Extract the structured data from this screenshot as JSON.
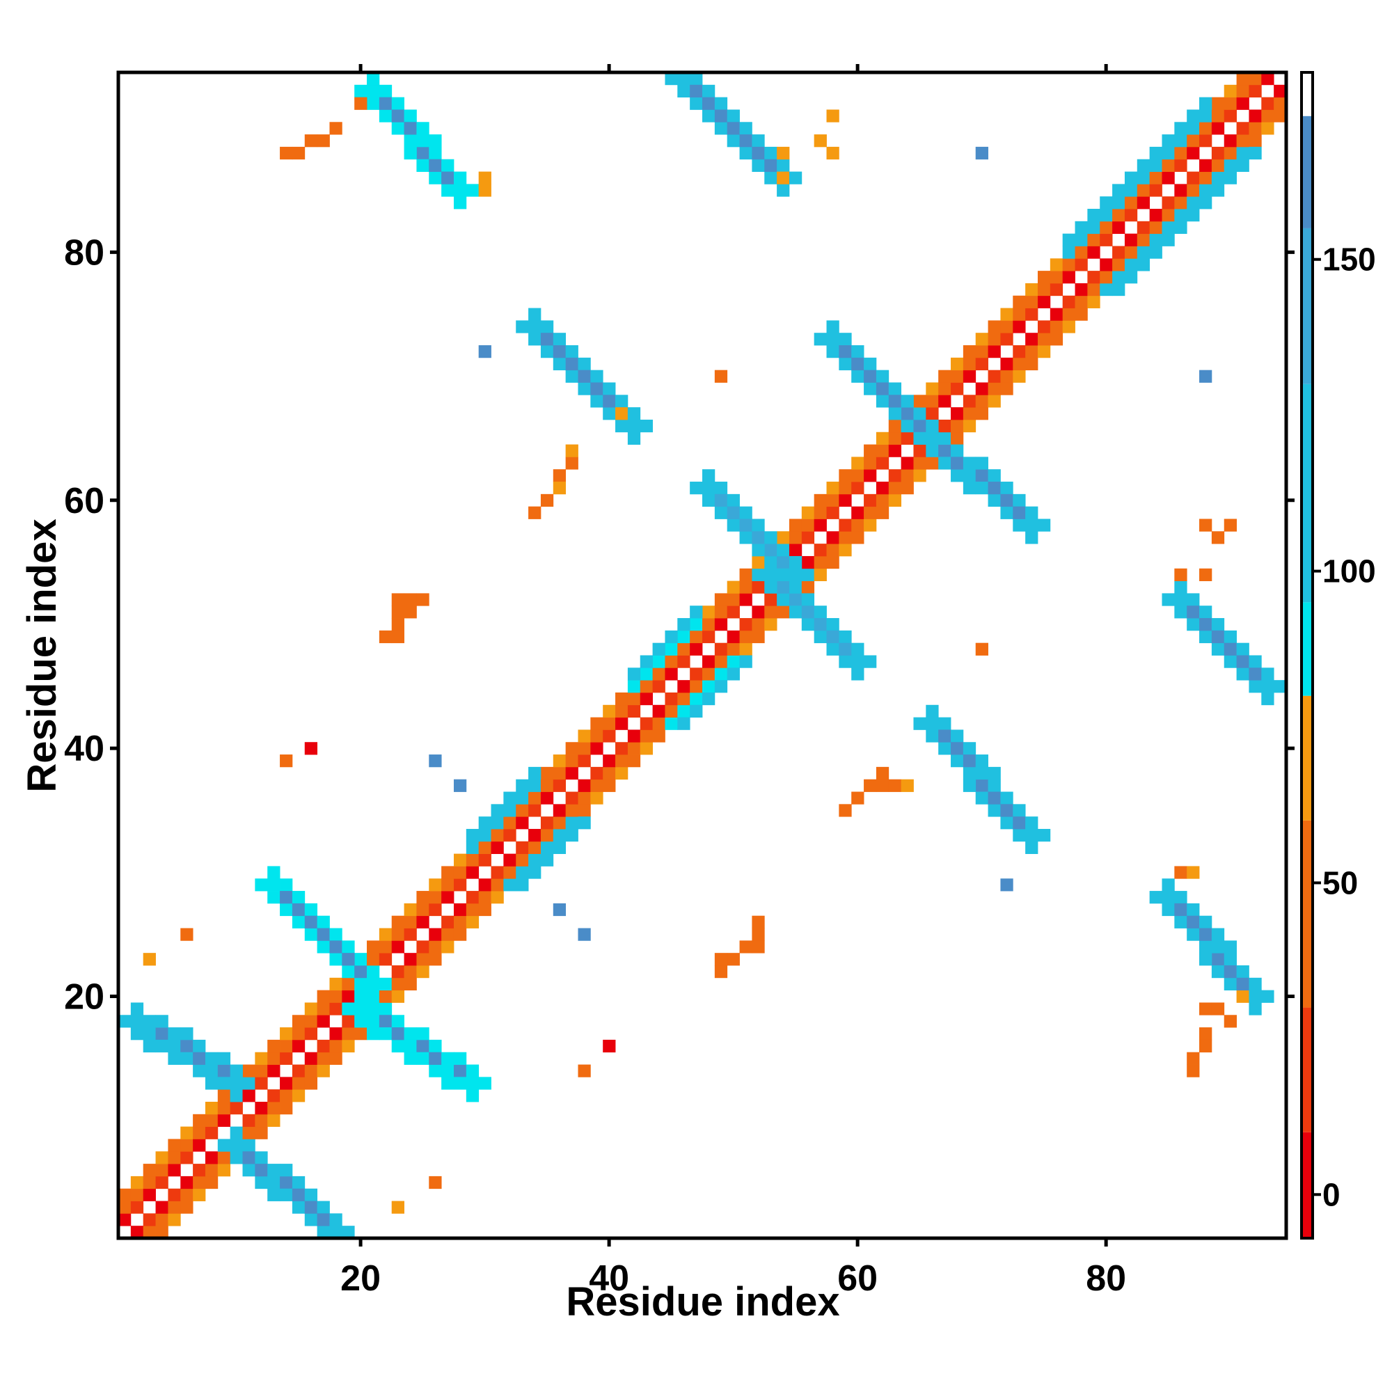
{
  "chart_data": {
    "type": "heatmap",
    "title": "",
    "xlabel": "Residue index",
    "ylabel": "Residue index",
    "xlim": [
      1,
      94
    ],
    "ylim": [
      1,
      94
    ],
    "x_ticks": [
      20,
      40,
      60,
      80
    ],
    "y_ticks": [
      20,
      40,
      60,
      80
    ],
    "x_tick_labels": [
      "20",
      "40",
      "60",
      "80"
    ],
    "y_tick_labels": [
      "20",
      "40",
      "60",
      "80"
    ],
    "colorbar": {
      "range": [
        -7,
        180
      ],
      "ticks": [
        0,
        50,
        100,
        150
      ],
      "tick_labels": [
        "0",
        "50",
        "100",
        "150"
      ],
      "bands": [
        {
          "from": -7,
          "to": 10,
          "color": "#e8000b"
        },
        {
          "from": 10,
          "to": 30,
          "color": "#ee3a0e"
        },
        {
          "from": 30,
          "to": 60,
          "color": "#f06b10"
        },
        {
          "from": 60,
          "to": 80,
          "color": "#f59a10"
        },
        {
          "from": 80,
          "to": 95,
          "color": "#00e5ee"
        },
        {
          "from": 95,
          "to": 130,
          "color": "#20c0e0"
        },
        {
          "from": 130,
          "to": 155,
          "color": "#3aa8d8"
        },
        {
          "from": 155,
          "to": 173,
          "color": "#4a8cc8"
        },
        {
          "from": 173,
          "to": 180,
          "color": "#ffffff"
        }
      ]
    },
    "legend": "colorbar-right",
    "grid": false,
    "structure_note_colors": {
      "near": "#e8000b",
      "mid1": "#ee3a0e",
      "mid2": "#f06b10",
      "mid3": "#f59a10",
      "cyan": "#00e5ee",
      "lightblue": "#20c0e0",
      "midblue": "#3aa8d8",
      "darkblue": "#4a8cc8"
    },
    "regions": [
      {
        "kind": "diag",
        "from": 1,
        "to": 94,
        "offsets": [
          1,
          2,
          3
        ],
        "values": [
          5,
          30,
          55
        ]
      },
      {
        "kind": "anti",
        "x0": 10,
        "y0": 8,
        "x1": 18,
        "y1": 1,
        "value": 165,
        "edge": 105
      },
      {
        "kind": "anti",
        "x0": 2,
        "y0": 18,
        "x1": 10,
        "y1": 13,
        "value": 165,
        "edge": 105
      },
      {
        "kind": "anti",
        "x0": 20,
        "y0": 19,
        "x1": 29,
        "y1": 13,
        "value": 165,
        "edge": 90
      },
      {
        "kind": "anti",
        "x0": 13,
        "y0": 29,
        "x1": 21,
        "y1": 21,
        "value": 165,
        "edge": 90
      },
      {
        "kind": "anti",
        "x0": 21,
        "y0": 93,
        "x1": 28,
        "y1": 85,
        "value": 165,
        "edge": 90
      },
      {
        "kind": "anti",
        "x0": 46,
        "y0": 94,
        "x1": 54,
        "y1": 86,
        "value": 165,
        "edge": 105
      },
      {
        "kind": "anti",
        "x0": 34,
        "y0": 74,
        "x1": 42,
        "y1": 66,
        "value": 165,
        "edge": 105
      },
      {
        "kind": "anti",
        "x0": 58,
        "y0": 73,
        "x1": 66,
        "y1": 65,
        "value": 165,
        "edge": 105
      },
      {
        "kind": "anti",
        "x0": 66,
        "y0": 65,
        "x1": 74,
        "y1": 58,
        "value": 165,
        "edge": 105
      },
      {
        "kind": "anti",
        "x0": 48,
        "y0": 61,
        "x1": 55,
        "y1": 54,
        "value": 150,
        "edge": 110
      },
      {
        "kind": "anti",
        "x0": 53,
        "y0": 54,
        "x1": 60,
        "y1": 47,
        "value": 150,
        "edge": 110
      },
      {
        "kind": "anti",
        "x0": 86,
        "y0": 52,
        "x1": 93,
        "y1": 45,
        "value": 165,
        "edge": 105
      },
      {
        "kind": "anti",
        "x0": 66,
        "y0": 42,
        "x1": 74,
        "y1": 33,
        "value": 165,
        "edge": 105
      },
      {
        "kind": "anti",
        "x0": 85,
        "y0": 28,
        "x1": 92,
        "y1": 20,
        "value": 165,
        "edge": 95
      },
      {
        "kind": "diagband",
        "x0": 77,
        "y0": 77,
        "x1": 88,
        "y1": 88,
        "offset": 2,
        "value": 100
      },
      {
        "kind": "diagband",
        "x0": 42,
        "y0": 42,
        "x1": 47,
        "y1": 47,
        "offset": 2,
        "value": 92
      },
      {
        "kind": "diagband",
        "x0": 29,
        "y0": 29,
        "x1": 34,
        "y1": 34,
        "offset": 2,
        "value": 100
      },
      {
        "kind": "cells",
        "value": 40,
        "cells": [
          [
            14,
            88
          ],
          [
            15,
            88
          ],
          [
            16,
            89
          ],
          [
            17,
            89
          ],
          [
            18,
            90
          ],
          [
            20,
            92
          ]
        ]
      },
      {
        "kind": "cells",
        "value": 65,
        "cells": [
          [
            30,
            85
          ],
          [
            30,
            86
          ],
          [
            54,
            86
          ],
          [
            54,
            88
          ],
          [
            58,
            88
          ],
          [
            57,
            89
          ],
          [
            58,
            91
          ]
        ]
      },
      {
        "kind": "cells",
        "value": 160,
        "cells": [
          [
            70,
            88
          ],
          [
            30,
            72
          ],
          [
            88,
            70
          ],
          [
            26,
            39
          ],
          [
            28,
            37
          ],
          [
            36,
            27
          ],
          [
            38,
            25
          ],
          [
            72,
            29
          ]
        ]
      },
      {
        "kind": "cells",
        "value": 45,
        "cells": [
          [
            49,
            70
          ],
          [
            70,
            48
          ],
          [
            14,
            39
          ],
          [
            6,
            25
          ],
          [
            26,
            5
          ],
          [
            37,
            63
          ],
          [
            36,
            62
          ],
          [
            35,
            60
          ],
          [
            34,
            59
          ],
          [
            88,
            58
          ],
          [
            89,
            57
          ],
          [
            90,
            58
          ],
          [
            86,
            54
          ],
          [
            88,
            54
          ],
          [
            23,
            52
          ],
          [
            24,
            52
          ],
          [
            25,
            52
          ],
          [
            23,
            51
          ],
          [
            24,
            51
          ],
          [
            23,
            50
          ],
          [
            22,
            49
          ],
          [
            23,
            49
          ],
          [
            62,
            38
          ],
          [
            61,
            37
          ],
          [
            62,
            37
          ],
          [
            63,
            37
          ],
          [
            60,
            36
          ],
          [
            59,
            35
          ],
          [
            50,
            23
          ],
          [
            51,
            24
          ],
          [
            52,
            24
          ],
          [
            52,
            25
          ],
          [
            52,
            26
          ],
          [
            49,
            22
          ],
          [
            49,
            23
          ],
          [
            88,
            19
          ],
          [
            89,
            19
          ],
          [
            90,
            18
          ],
          [
            88,
            17
          ],
          [
            88,
            16
          ],
          [
            87,
            15
          ],
          [
            87,
            14
          ],
          [
            38,
            14
          ],
          [
            86,
            30
          ]
        ]
      },
      {
        "kind": "cells",
        "value": 70,
        "cells": [
          [
            3,
            23
          ],
          [
            23,
            3
          ],
          [
            64,
            37
          ],
          [
            41,
            67
          ],
          [
            37,
            64
          ],
          [
            36,
            61
          ],
          [
            87,
            30
          ],
          [
            91,
            20
          ]
        ]
      },
      {
        "kind": "cells",
        "value": 2,
        "cells": [
          [
            16,
            40
          ],
          [
            40,
            16
          ]
        ]
      }
    ]
  }
}
